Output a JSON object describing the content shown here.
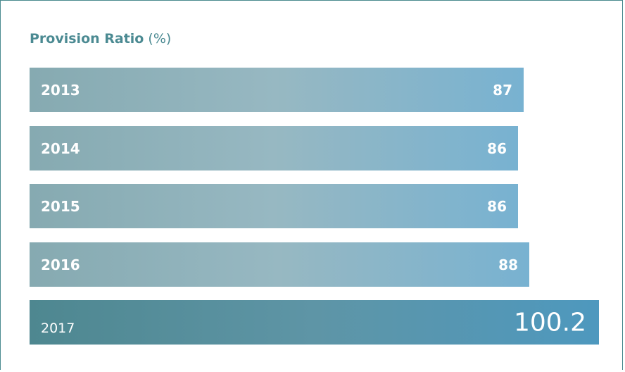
{
  "chart_data": {
    "type": "bar",
    "orientation": "horizontal",
    "title": "Provision Ratio",
    "title_unit": "(%)",
    "categories": [
      "2013",
      "2014",
      "2015",
      "2016",
      "2017"
    ],
    "values": [
      87,
      86,
      86,
      88,
      100.2
    ],
    "value_labels": [
      "87",
      "86",
      "86",
      "88",
      "100.2"
    ],
    "highlighted_category": "2017",
    "xlim": [
      0,
      100.2
    ],
    "grid": false,
    "colors": {
      "title": "#4b8a92",
      "bar_start": "#86aab1",
      "bar_end": "#78b2d1",
      "highlight_start": "#4e8790",
      "highlight_end": "#4e98be",
      "label": "#ffffff",
      "frame": "#4a8a8f"
    }
  }
}
